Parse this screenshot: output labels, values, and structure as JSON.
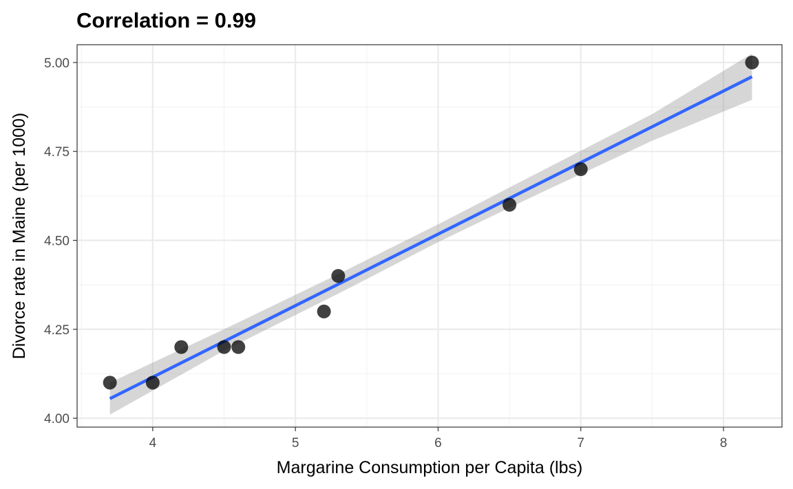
{
  "chart_data": {
    "type": "scatter",
    "title": "Correlation = 0.99",
    "xlabel": "Margarine Consumption per Capita (lbs)",
    "ylabel": "Divorce rate in Maine (per 1000)",
    "xlim": [
      3.47,
      8.41
    ],
    "ylim": [
      3.975,
      5.05
    ],
    "x_ticks": [
      4,
      5,
      6,
      7,
      8
    ],
    "x_tick_labels": [
      "4",
      "5",
      "6",
      "7",
      "8"
    ],
    "x_minor_ticks": [
      3.5,
      4.5,
      5.5,
      6.5,
      7.5
    ],
    "y_ticks": [
      4.0,
      4.25,
      4.5,
      4.75,
      5.0
    ],
    "y_tick_labels": [
      "4.00",
      "4.25",
      "4.50",
      "4.75",
      "5.00"
    ],
    "y_minor_ticks": [
      4.125,
      4.375,
      4.625,
      4.875
    ],
    "grid": true,
    "points": [
      {
        "x": 3.7,
        "y": 4.1
      },
      {
        "x": 4.0,
        "y": 4.1
      },
      {
        "x": 4.2,
        "y": 4.2
      },
      {
        "x": 4.5,
        "y": 4.2
      },
      {
        "x": 4.6,
        "y": 4.2
      },
      {
        "x": 5.2,
        "y": 4.3
      },
      {
        "x": 5.3,
        "y": 4.4
      },
      {
        "x": 6.5,
        "y": 4.6
      },
      {
        "x": 7.0,
        "y": 4.7
      },
      {
        "x": 8.2,
        "y": 5.0
      }
    ],
    "trend_line": {
      "method": "linear",
      "x": [
        3.7,
        8.2
      ],
      "y": [
        4.055,
        4.96
      ],
      "color": "#3366ff"
    },
    "confidence_band": {
      "x": [
        3.7,
        4.5,
        5.3,
        6.0,
        6.7,
        7.5,
        8.2
      ],
      "lower": [
        4.01,
        4.19,
        4.35,
        4.495,
        4.63,
        4.78,
        4.895
      ],
      "upper": [
        4.1,
        4.25,
        4.405,
        4.545,
        4.69,
        4.855,
        5.025
      ],
      "color": "#999999"
    },
    "colors": {
      "point": "#000000",
      "panel_border": "#333333",
      "grid_major": "#ebebeb",
      "grid_minor": "#f3f3f3"
    }
  }
}
